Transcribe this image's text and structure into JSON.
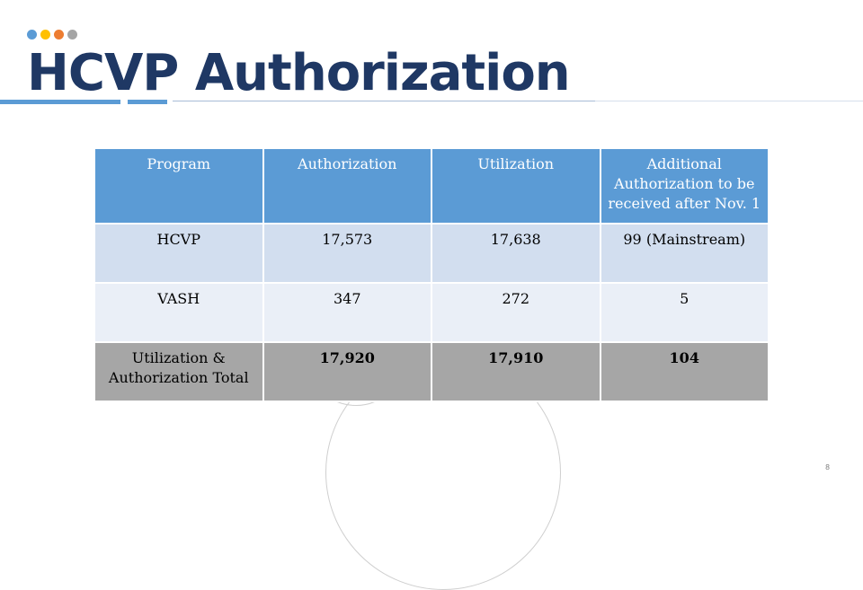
{
  "slide": {
    "title": "HCVP Authorization",
    "page_number": "8"
  },
  "decor": {
    "dot_colors": [
      "#5b9bd5",
      "#ffc000",
      "#ed7d31",
      "#a5a5a5"
    ],
    "underline_color": "#5b9bd5"
  },
  "table": {
    "headers": [
      "Program",
      "Authorization",
      "Utilization",
      "Additional Authorization to be received after Nov. 1"
    ],
    "rows": [
      [
        "HCVP",
        "17,573",
        "17,638",
        "99 (Mainstream)"
      ],
      [
        "VASH",
        "347",
        "272",
        "5"
      ],
      [
        "Utilization & Authorization Total",
        "17,920",
        "17,910",
        "104"
      ]
    ]
  }
}
